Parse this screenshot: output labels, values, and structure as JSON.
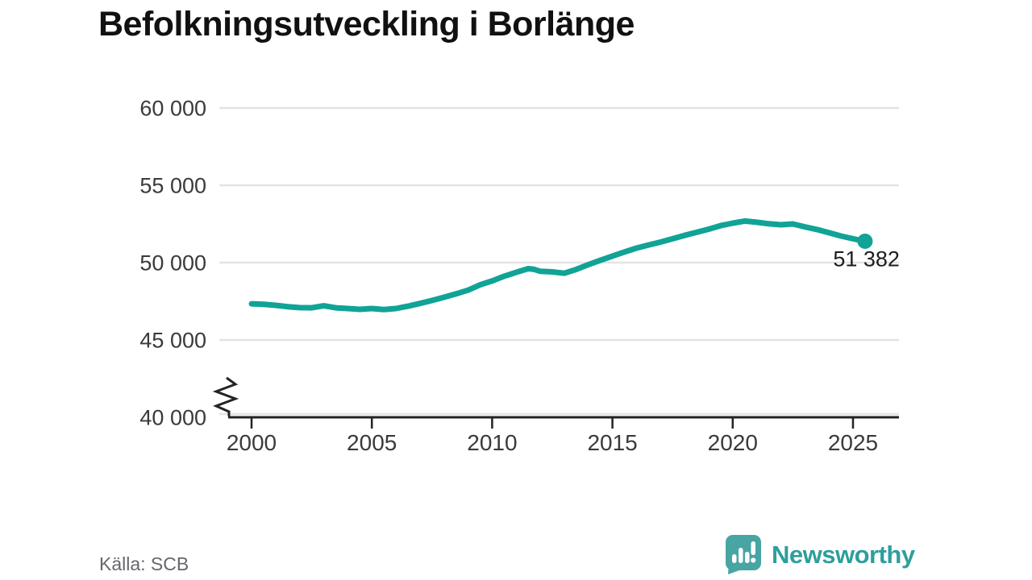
{
  "title": "Befolkningsutveckling i Borlänge",
  "footer": {
    "source": "Källa: SCB",
    "brand": "Newsworthy"
  },
  "colors": {
    "line": "#10a396",
    "grid": "#e4e4e4",
    "axis": "#232323",
    "tick_text": "#3a3a3a",
    "title_text": "#111111",
    "source_text": "#66666e",
    "logo": "#47a5a3",
    "brand_text": "#2d9f9c",
    "end_label_text": "#1d1d1d"
  },
  "chart_data": {
    "type": "line",
    "title": "Befolkningsutveckling i Borlänge",
    "xlabel": "",
    "ylabel": "",
    "grid": "horizontal",
    "legend": "none",
    "axis_break": true,
    "ylim": [
      40000,
      60000
    ],
    "xlim": [
      1999,
      2027
    ],
    "y_ticks": [
      {
        "value": 40000,
        "label": "40 000"
      },
      {
        "value": 45000,
        "label": "45 000"
      },
      {
        "value": 50000,
        "label": "50 000"
      },
      {
        "value": 55000,
        "label": "55 000"
      },
      {
        "value": 60000,
        "label": "60 000"
      }
    ],
    "x_ticks": [
      {
        "value": 2000,
        "label": "2000"
      },
      {
        "value": 2005,
        "label": "2005"
      },
      {
        "value": 2010,
        "label": "2010"
      },
      {
        "value": 2015,
        "label": "2015"
      },
      {
        "value": 2020,
        "label": "2020"
      },
      {
        "value": 2025,
        "label": "2025"
      }
    ],
    "end_label": "51 382",
    "end_value": 51382,
    "series": [
      {
        "color": "#10a396",
        "points": [
          [
            2000.0,
            47340
          ],
          [
            2000.5,
            47300
          ],
          [
            2001.0,
            47240
          ],
          [
            2001.5,
            47150
          ],
          [
            2002.0,
            47090
          ],
          [
            2002.5,
            47080
          ],
          [
            2003.0,
            47210
          ],
          [
            2003.5,
            47080
          ],
          [
            2004.0,
            47030
          ],
          [
            2004.5,
            46980
          ],
          [
            2005.0,
            47030
          ],
          [
            2005.5,
            46970
          ],
          [
            2006.0,
            47030
          ],
          [
            2006.5,
            47180
          ],
          [
            2007.0,
            47360
          ],
          [
            2007.5,
            47550
          ],
          [
            2008.0,
            47760
          ],
          [
            2008.5,
            47980
          ],
          [
            2009.0,
            48220
          ],
          [
            2009.5,
            48560
          ],
          [
            2010.0,
            48820
          ],
          [
            2010.5,
            49120
          ],
          [
            2011.0,
            49370
          ],
          [
            2011.5,
            49610
          ],
          [
            2011.75,
            49560
          ],
          [
            2012.0,
            49440
          ],
          [
            2012.5,
            49400
          ],
          [
            2013.0,
            49310
          ],
          [
            2013.5,
            49560
          ],
          [
            2014.0,
            49870
          ],
          [
            2014.5,
            50150
          ],
          [
            2015.0,
            50420
          ],
          [
            2015.5,
            50690
          ],
          [
            2016.0,
            50940
          ],
          [
            2016.5,
            51140
          ],
          [
            2017.0,
            51330
          ],
          [
            2017.5,
            51540
          ],
          [
            2018.0,
            51760
          ],
          [
            2018.5,
            51960
          ],
          [
            2019.0,
            52160
          ],
          [
            2019.5,
            52390
          ],
          [
            2020.0,
            52550
          ],
          [
            2020.5,
            52690
          ],
          [
            2021.0,
            52610
          ],
          [
            2021.5,
            52510
          ],
          [
            2022.0,
            52450
          ],
          [
            2022.5,
            52500
          ],
          [
            2023.0,
            52310
          ],
          [
            2023.5,
            52140
          ],
          [
            2024.0,
            51930
          ],
          [
            2024.5,
            51720
          ],
          [
            2025.0,
            51540
          ],
          [
            2025.5,
            51382
          ]
        ]
      }
    ]
  }
}
